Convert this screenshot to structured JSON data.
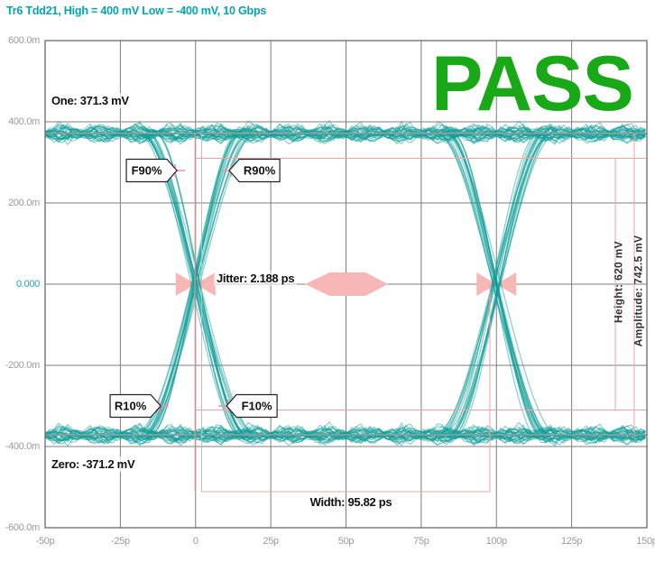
{
  "header": {
    "title": "Tr6 Tdd21, High = 400 mV Low = -400 mV, 10 Gbps"
  },
  "status": {
    "result": "PASS"
  },
  "labels": {
    "one": "One: 371.3 mV",
    "zero": "Zero: -371.2 mV",
    "jitter": "Jitter: 2.188 ps",
    "width": "Width: 95.82 ps",
    "height": "Height: 620 mV",
    "amplitude": "Amplitude: 742.5 mV"
  },
  "chart_data": {
    "type": "eye-diagram",
    "title": "Tr6 Tdd21, High = 400 mV Low = -400 mV, 10 Gbps",
    "signal": {
      "trace": "Tr6 Tdd21",
      "bit_rate": "10 Gbps",
      "high_mV": 400,
      "low_mV": -400
    },
    "x_axis": {
      "unit": "ps",
      "range_ps": [
        -50,
        150
      ],
      "tick_labels": [
        "-50p",
        "-25p",
        "0",
        "25p",
        "50p",
        "75p",
        "100p",
        "125p",
        "150p"
      ],
      "tick_values_ps": [
        -50,
        -25,
        0,
        25,
        50,
        75,
        100,
        125,
        150
      ],
      "grid": true
    },
    "y_axis": {
      "unit": "V",
      "range_mV": [
        -600,
        600
      ],
      "tick_labels": [
        "600.0m",
        "400.0m",
        "200.0m",
        "0.000",
        "-200.0m",
        "-400.0m",
        "-600.0m"
      ],
      "tick_values_mV": [
        600,
        400,
        200,
        0,
        -200,
        -400,
        -600
      ],
      "grid": true
    },
    "measurements": {
      "result": "PASS",
      "one_level_mV": 371.3,
      "zero_level_mV": -371.2,
      "jitter_ps": 2.188,
      "width_ps": 95.82,
      "height_mV": 620,
      "amplitude_mV": 742.5
    },
    "eye_crossings_ps": [
      0,
      100
    ],
    "markers": [
      {
        "label": "F90%",
        "t_ps": -6.8,
        "v_mV": 280,
        "callout_side": "left"
      },
      {
        "label": "R90%",
        "t_ps": 11.8,
        "v_mV": 280,
        "callout_side": "right"
      },
      {
        "label": "R10%",
        "t_ps": -12.2,
        "v_mV": -300,
        "callout_side": "left"
      },
      {
        "label": "F10%",
        "t_ps": 10.9,
        "v_mV": -300,
        "callout_side": "right"
      }
    ],
    "mask": {
      "center_polygon_ps_mV": [
        [
          36.4,
          0
        ],
        [
          44.5,
          29
        ],
        [
          56.5,
          29
        ],
        [
          63.9,
          0
        ],
        [
          56.5,
          -29
        ],
        [
          44.5,
          -29
        ]
      ],
      "crossing_bowtie": {
        "half_width_ps": 6.6,
        "half_height_mV": 29
      }
    }
  },
  "colors": {
    "title_text": "#00a7ad",
    "pass_green": "#18a818",
    "trace_teal": "#109e98",
    "mean_line_teal": "#0c968f",
    "mask_pink": "#f8b7b7",
    "measure_line_pink": "#f2a3a3",
    "marker_cross_pink": "#f08fab",
    "grid_gray": "#7d7d7d",
    "border_gray": "#5e5e5e",
    "axis_text_gray": "#9a9a9a",
    "zero_tick_teal": "#00b4bc",
    "annotation_text": "#111111"
  }
}
